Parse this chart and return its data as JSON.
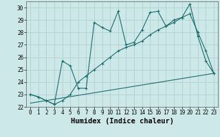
{
  "xlabel": "Humidex (Indice chaleur)",
  "xlim": [
    -0.5,
    23.5
  ],
  "ylim": [
    22,
    30.5
  ],
  "yticks": [
    22,
    23,
    24,
    25,
    26,
    27,
    28,
    29,
    30
  ],
  "xticks": [
    0,
    1,
    2,
    3,
    4,
    5,
    6,
    7,
    8,
    9,
    10,
    11,
    12,
    13,
    14,
    15,
    16,
    17,
    18,
    19,
    20,
    21,
    22,
    23
  ],
  "bg_color": "#cce8e8",
  "grid_color": "#b0d0d0",
  "line_color": "#1a6b6b",
  "line1_x": [
    0,
    1,
    2,
    3,
    4,
    5,
    6,
    7,
    8,
    9,
    10,
    11,
    12,
    13,
    14,
    15,
    16,
    17,
    18,
    19,
    20,
    21,
    22,
    23
  ],
  "line1_y": [
    23.0,
    22.8,
    22.5,
    22.2,
    25.7,
    25.3,
    23.5,
    23.5,
    28.8,
    28.4,
    28.1,
    29.7,
    27.0,
    27.2,
    28.2,
    29.6,
    29.7,
    28.5,
    29.0,
    29.2,
    30.3,
    27.7,
    25.7,
    24.7
  ],
  "line2_x": [
    0,
    1,
    2,
    3,
    4,
    5,
    6,
    7,
    8,
    9,
    10,
    11,
    12,
    13,
    14,
    15,
    16,
    17,
    18,
    19,
    20,
    21,
    22,
    23
  ],
  "line2_y": [
    23.0,
    22.8,
    22.5,
    22.2,
    22.5,
    23.0,
    24.0,
    24.5,
    25.0,
    25.5,
    26.0,
    26.5,
    26.8,
    27.0,
    27.3,
    27.8,
    28.2,
    28.5,
    28.8,
    29.2,
    29.5,
    28.0,
    26.5,
    24.7
  ],
  "line3_x": [
    0,
    23
  ],
  "line3_y": [
    22.3,
    24.7
  ],
  "tick_fontsize": 5.5,
  "xlabel_fontsize": 7.5
}
